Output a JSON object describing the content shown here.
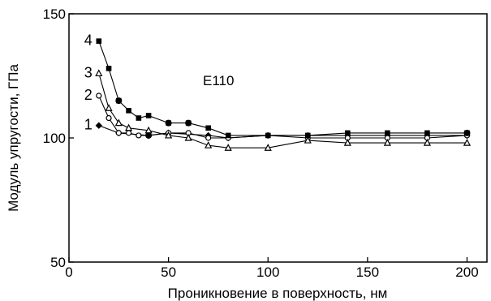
{
  "chart_data": {
    "type": "line",
    "xlabel": "Проникновение в поверхность, нм",
    "ylabel": "Модуль упругости, ГПа",
    "xlim": [
      0,
      210
    ],
    "ylim": [
      50,
      150
    ],
    "xticks": [
      0,
      50,
      100,
      150,
      200
    ],
    "yticks": [
      50,
      100,
      150
    ],
    "grid": false,
    "annotation": "E110",
    "series": [
      {
        "name": "1",
        "marker": "diamond",
        "x": [
          15,
          25,
          40,
          50,
          70,
          80,
          100,
          120,
          140,
          160,
          180,
          200
        ],
        "y": [
          105,
          102,
          101,
          102,
          101,
          100,
          101,
          101,
          101,
          101,
          101,
          101
        ]
      },
      {
        "name": "2",
        "marker": "open-circle",
        "x": [
          15,
          20,
          25,
          30,
          35,
          40,
          50,
          60,
          70,
          80,
          100,
          120,
          140,
          160,
          180,
          200
        ],
        "y": [
          117,
          108,
          102,
          102,
          101,
          101,
          102,
          102,
          100,
          100,
          101,
          100,
          100,
          100,
          100,
          101
        ]
      },
      {
        "name": "3",
        "marker": "open-triangle",
        "x": [
          15,
          20,
          25,
          30,
          40,
          50,
          60,
          70,
          80,
          100,
          120,
          140,
          160,
          180,
          200
        ],
        "y": [
          126,
          112,
          106,
          104,
          103,
          101,
          100,
          97,
          96,
          96,
          99,
          98,
          98,
          98,
          98
        ]
      },
      {
        "name": "4",
        "marker": "filled-square",
        "x": [
          15,
          20,
          25,
          30,
          35,
          40,
          50,
          60,
          70,
          80,
          100,
          120,
          140,
          160,
          180,
          200
        ],
        "y": [
          139,
          128,
          115,
          111,
          108,
          109,
          106,
          106,
          104,
          101,
          101,
          101,
          102,
          102,
          102,
          102
        ]
      }
    ],
    "extra_markers": [
      {
        "marker": "filled-circle",
        "x": 25,
        "y": 115
      },
      {
        "marker": "filled-circle",
        "x": 40,
        "y": 101
      },
      {
        "marker": "filled-circle",
        "x": 50,
        "y": 106
      },
      {
        "marker": "filled-circle",
        "x": 60,
        "y": 106
      },
      {
        "marker": "filled-circle",
        "x": 200,
        "y": 102
      }
    ]
  }
}
